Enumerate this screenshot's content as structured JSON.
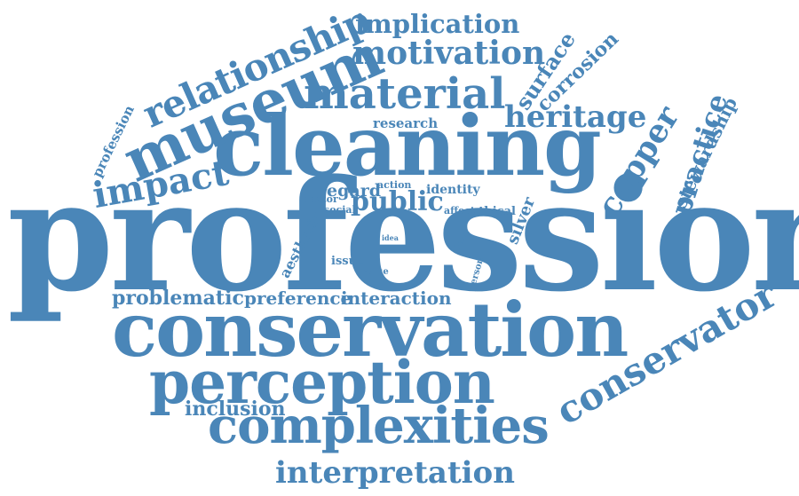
{
  "cloud": {
    "color": "#4a86b8",
    "background": "#ffffff",
    "words": [
      "professional",
      "cleaning",
      "conservation",
      "perception",
      "complexities",
      "museum",
      "material",
      "relationship",
      "motivation",
      "implication",
      "conservator",
      "interpretation",
      "heritage",
      "impact",
      "copper",
      "practice",
      "surface",
      "corrosion",
      "stewardship",
      "public",
      "problematic",
      "preference",
      "interaction",
      "inclusion",
      "regard",
      "research",
      "identity",
      "action",
      "factor",
      "social",
      "aesthetic",
      "affect",
      "ethical",
      "silver",
      "profession",
      "issue",
      "idea",
      "value",
      "level",
      "person"
    ]
  }
}
